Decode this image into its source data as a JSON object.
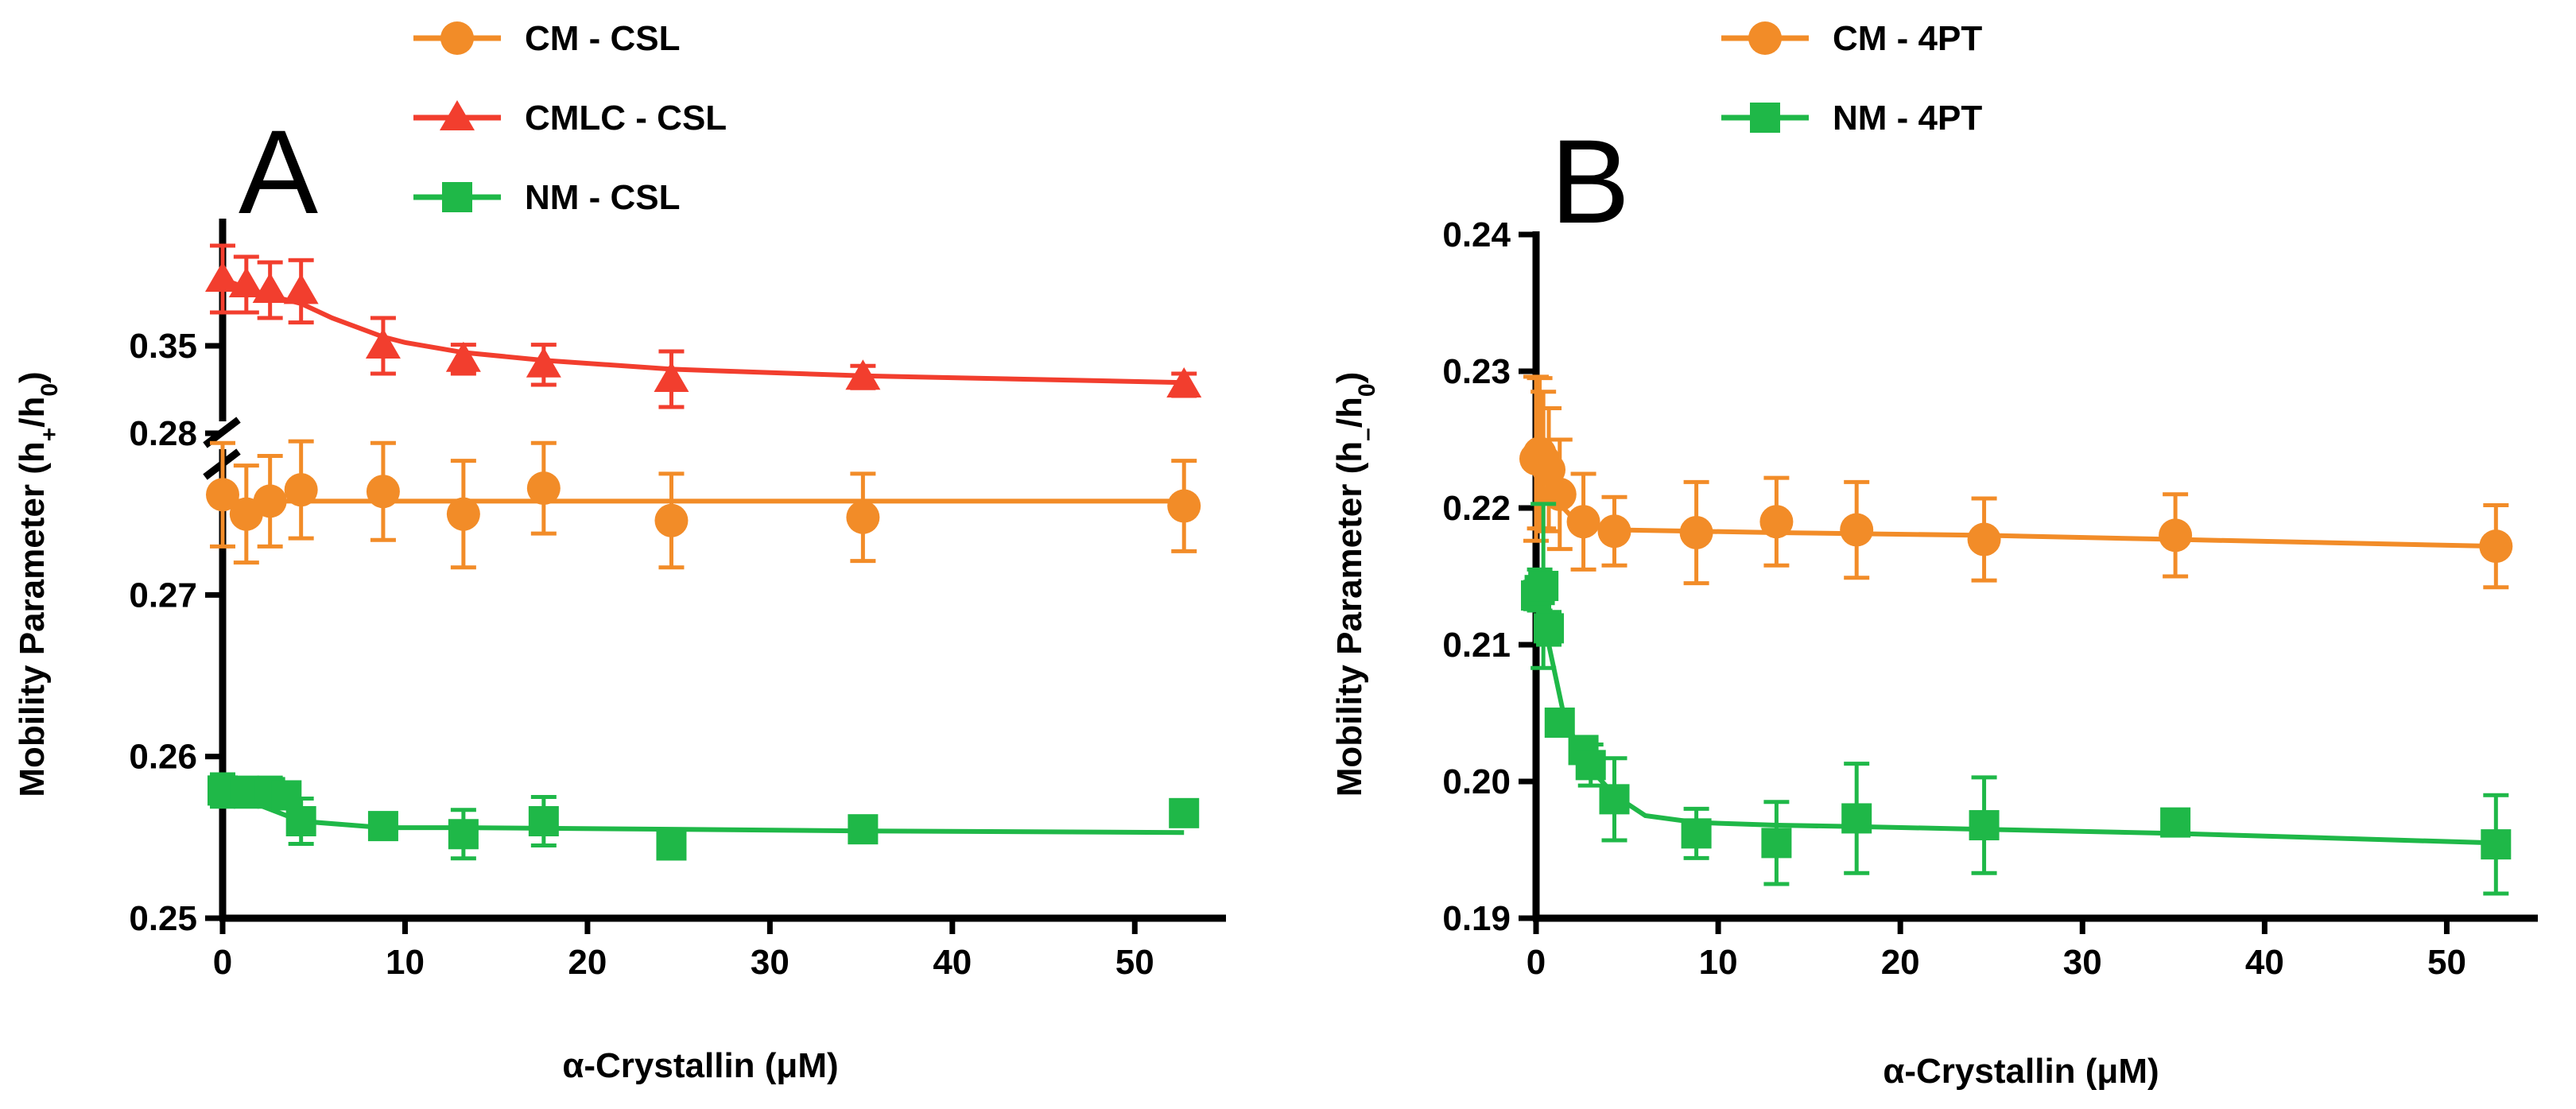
{
  "chart_data": [
    {
      "panel": "A",
      "type": "scatter",
      "xlabel": "α-Crystallin (μM)",
      "ylabel_parts": [
        "Mobility Parameter (h",
        "+",
        "/h",
        "0",
        ")"
      ],
      "xlim": [
        0,
        55
      ],
      "xticks": [
        0,
        10,
        20,
        30,
        40,
        50
      ],
      "y_broken": true,
      "lower_ylim": [
        0.25,
        0.28
      ],
      "lower_yticks": [
        0.25,
        0.26,
        0.27,
        0.28
      ],
      "upper_ylim": [
        0.345,
        0.36
      ],
      "upper_yticks": [
        0.35
      ],
      "legend_position": "top",
      "series": [
        {
          "name": "CM - CSL",
          "color": "#F28C28",
          "marker": "circle",
          "segment": "lower",
          "x": [
            0,
            1.3,
            2.6,
            4.3,
            8.8,
            13.2,
            17.6,
            24.6,
            35.1,
            52.7
          ],
          "y": [
            0.2762,
            0.275,
            0.2758,
            0.2765,
            0.2764,
            0.275,
            0.2766,
            0.2746,
            0.2748,
            0.2755
          ],
          "err": [
            0.0032,
            0.003,
            0.0028,
            0.003,
            0.003,
            0.0033,
            0.0028,
            0.0029,
            0.0027,
            0.0028
          ],
          "fit_x": [
            0,
            53
          ],
          "fit_y": [
            0.2758,
            0.2758
          ]
        },
        {
          "name": "CMLC - CSL",
          "color": "#F23E2E",
          "marker": "triangle",
          "segment": "upper",
          "x": [
            0,
            1.3,
            2.6,
            4.3,
            8.8,
            13.2,
            17.6,
            24.6,
            35.1,
            52.7
          ],
          "y": [
            0.356,
            0.3555,
            0.355,
            0.3549,
            0.35,
            0.3488,
            0.3483,
            0.347,
            0.3472,
            0.3465
          ],
          "err": [
            0.003,
            0.0025,
            0.0025,
            0.0028,
            0.0025,
            0.0013,
            0.0018,
            0.0025,
            0.001,
            0.001
          ],
          "fit_x": [
            0,
            1.3,
            2.6,
            4.3,
            6,
            8.8,
            10,
            13.2,
            17.6,
            24.6,
            35.1,
            52.7
          ],
          "fit_y": [
            0.356,
            0.3552,
            0.3545,
            0.3538,
            0.3525,
            0.3508,
            0.3503,
            0.3494,
            0.3487,
            0.3479,
            0.3473,
            0.3467
          ]
        },
        {
          "name": "NM - CSL",
          "color": "#1FB848",
          "marker": "square",
          "segment": "lower",
          "x": [
            0,
            1.3,
            2.6,
            3.5,
            4.3,
            8.8,
            13.2,
            17.6,
            24.6,
            35.1,
            52.7
          ],
          "y": [
            0.2579,
            0.2578,
            0.2578,
            0.2576,
            0.256,
            0.2557,
            0.2552,
            0.256,
            0.2545,
            0.2555,
            0.2565
          ],
          "err": [
            0.001,
            0.0009,
            0.0009,
            0.0008,
            0.0014,
            0.0004,
            0.0015,
            0.0015,
            0.0005,
            0.0006,
            0.0005
          ],
          "fit_x": [
            0,
            2,
            4.3,
            8.8,
            13.2,
            24.6,
            35.1,
            52.7
          ],
          "fit_y": [
            0.2577,
            0.257,
            0.256,
            0.2556,
            0.2556,
            0.2555,
            0.2554,
            0.2553
          ]
        }
      ]
    },
    {
      "panel": "B",
      "type": "scatter",
      "xlabel": "α-Crystallin (μM)",
      "ylabel_parts": [
        "Mobility Parameter (h",
        "–",
        "/h",
        "0",
        ")"
      ],
      "xlim": [
        0,
        55
      ],
      "xticks": [
        0,
        10,
        20,
        30,
        40,
        50
      ],
      "ylim": [
        0.19,
        0.24
      ],
      "yticks": [
        0.19,
        0.2,
        0.21,
        0.22,
        0.23,
        0.24
      ],
      "legend_position": "top",
      "series": [
        {
          "name": "CM - 4PT",
          "color": "#F28C28",
          "marker": "circle",
          "x": [
            0,
            0.2,
            0.4,
            0.7,
            1.3,
            2.6,
            4.3,
            8.8,
            13.2,
            17.6,
            24.6,
            35.1,
            52.7
          ],
          "y": [
            0.2236,
            0.224,
            0.2235,
            0.2228,
            0.221,
            0.219,
            0.2183,
            0.2182,
            0.219,
            0.2184,
            0.2177,
            0.218,
            0.2172
          ],
          "err": [
            0.006,
            0.0055,
            0.005,
            0.0045,
            0.004,
            0.0035,
            0.0025,
            0.0037,
            0.0032,
            0.0035,
            0.003,
            0.003,
            0.003
          ],
          "fit_x": [
            0,
            0.5,
            1,
            1.5,
            2,
            3,
            4.3,
            8.8,
            13.2,
            24.6,
            35.1,
            52.7
          ],
          "fit_y": [
            0.2233,
            0.222,
            0.2208,
            0.22,
            0.2193,
            0.2187,
            0.2184,
            0.2183,
            0.2182,
            0.218,
            0.2177,
            0.2172
          ]
        },
        {
          "name": "NM - 4PT",
          "color": "#1FB848",
          "marker": "square",
          "x": [
            0,
            0.2,
            0.4,
            0.7,
            1.3,
            2.6,
            3.0,
            4.3,
            8.8,
            13.2,
            17.6,
            24.6,
            35.1,
            52.7
          ],
          "y": [
            0.2136,
            0.214,
            0.2143,
            0.2112,
            0.2043,
            0.2023,
            0.2012,
            0.1987,
            0.1962,
            0.1955,
            0.1973,
            0.1968,
            0.197,
            0.1954
          ],
          "err": [
            0.001,
            0.0015,
            0.006,
            0.0012,
            0.0008,
            0.0008,
            0.0015,
            0.003,
            0.0018,
            0.003,
            0.004,
            0.0035,
            0.0008,
            0.0036
          ],
          "fit_x": [
            0,
            0.7,
            1.5,
            2.6,
            4.3,
            6,
            8.8,
            13.2,
            17.6,
            24.6,
            35.1,
            52.7
          ],
          "fit_y": [
            0.214,
            0.21,
            0.205,
            0.2015,
            0.199,
            0.1975,
            0.197,
            0.1968,
            0.1967,
            0.1965,
            0.1962,
            0.1955
          ]
        }
      ]
    }
  ]
}
